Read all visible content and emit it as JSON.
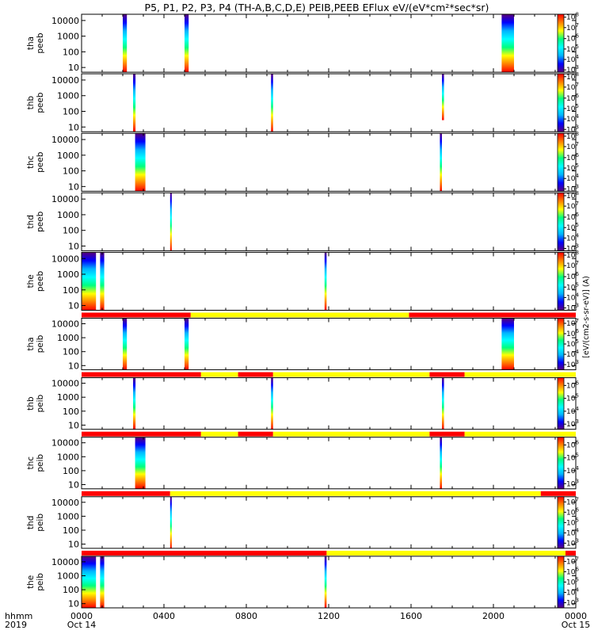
{
  "chart_data": {
    "type": "heatmap",
    "title": "P5, P1, P2, P3, P4 (TH-A,B,C,D,E) PEIB,PEEB EFlux eV/(eV*cm²*sec*sr)",
    "x_axis": {
      "range_hours": [
        0,
        24
      ],
      "tick_hours": [
        0,
        4,
        8,
        12,
        16,
        20,
        24
      ],
      "tick_labels": [
        "0000",
        "0400",
        "0800",
        "1200",
        "1600",
        "2000",
        "0000"
      ],
      "date_labels": [
        "Oct 14",
        "",
        "",
        "",
        "",
        "",
        "Oct 15"
      ],
      "row_labels": [
        "hhmm",
        "2019"
      ]
    },
    "y_ticks": [
      10,
      100,
      1000,
      10000
    ],
    "y_tick_labels": [
      "10",
      "100",
      "1000",
      "10000"
    ],
    "colorbar": {
      "unit_label": "[eV/(cm2-s-sr-eV)] (A)",
      "colors": [
        "#5a007a",
        "#0000ff",
        "#00b4ff",
        "#00ffff",
        "#00ff80",
        "#ffff00",
        "#ff8000",
        "#ff0000"
      ]
    },
    "mode_bar_colors": {
      "fast": "#ff0000",
      "slow": "#ffff00"
    },
    "panels": [
      {
        "name": "thapeeb",
        "ylabel": [
          "tha",
          "peeb"
        ],
        "cb_ticks": [
          {
            "frac": 0.04,
            "exp": "3"
          },
          {
            "frac": 0.22,
            "exp": "4"
          },
          {
            "frac": 0.4,
            "exp": "5"
          },
          {
            "frac": 0.58,
            "exp": "6"
          },
          {
            "frac": 0.77,
            "exp": "7"
          },
          {
            "frac": 0.95,
            "exp": "8"
          }
        ],
        "bursts": [
          {
            "start_hr": 2.0,
            "end_hr": 2.2,
            "ymin_frac": 0.0,
            "ymax_frac": 1.0
          },
          {
            "start_hr": 5.0,
            "end_hr": 5.2,
            "ymin_frac": 0.0,
            "ymax_frac": 1.0
          },
          {
            "start_hr": 20.4,
            "end_hr": 21.0,
            "ymin_frac": 0.0,
            "ymax_frac": 1.0
          }
        ],
        "mode_segments": []
      },
      {
        "name": "thbpeeb",
        "ylabel": [
          "thb",
          "peeb"
        ],
        "cb_ticks": [
          {
            "frac": 0.04,
            "exp": "3"
          },
          {
            "frac": 0.22,
            "exp": "4"
          },
          {
            "frac": 0.4,
            "exp": "5"
          },
          {
            "frac": 0.58,
            "exp": "6"
          },
          {
            "frac": 0.77,
            "exp": "7"
          },
          {
            "frac": 0.95,
            "exp": "8"
          }
        ],
        "bursts": [
          {
            "start_hr": 2.5,
            "end_hr": 2.62,
            "ymin_frac": 0.0,
            "ymax_frac": 1.0
          },
          {
            "start_hr": 9.2,
            "end_hr": 9.3,
            "ymin_frac": 0.0,
            "ymax_frac": 1.0
          },
          {
            "start_hr": 17.5,
            "end_hr": 17.6,
            "ymin_frac": 0.2,
            "ymax_frac": 1.0
          }
        ],
        "mode_segments": []
      },
      {
        "name": "thcpeeb",
        "ylabel": [
          "thc",
          "peeb"
        ],
        "cb_ticks": [
          {
            "frac": 0.04,
            "exp": "3"
          },
          {
            "frac": 0.22,
            "exp": "4"
          },
          {
            "frac": 0.4,
            "exp": "5"
          },
          {
            "frac": 0.58,
            "exp": "6"
          },
          {
            "frac": 0.77,
            "exp": "7"
          },
          {
            "frac": 0.95,
            "exp": "8"
          }
        ],
        "bursts": [
          {
            "start_hr": 2.6,
            "end_hr": 3.1,
            "ymin_frac": 0.0,
            "ymax_frac": 1.0
          },
          {
            "start_hr": 17.4,
            "end_hr": 17.5,
            "ymin_frac": 0.0,
            "ymax_frac": 1.0
          }
        ],
        "mode_segments": []
      },
      {
        "name": "thdpeeb",
        "ylabel": [
          "thd",
          "peeb"
        ],
        "cb_ticks": [
          {
            "frac": 0.04,
            "exp": "3"
          },
          {
            "frac": 0.22,
            "exp": "4"
          },
          {
            "frac": 0.4,
            "exp": "5"
          },
          {
            "frac": 0.58,
            "exp": "6"
          },
          {
            "frac": 0.77,
            "exp": "7"
          },
          {
            "frac": 0.95,
            "exp": "8"
          }
        ],
        "bursts": [
          {
            "start_hr": 4.3,
            "end_hr": 4.38,
            "ymin_frac": 0.0,
            "ymax_frac": 1.0
          }
        ],
        "mode_segments": []
      },
      {
        "name": "thepeeb",
        "ylabel": [
          "the",
          "peeb"
        ],
        "cb_ticks": [
          {
            "frac": 0.04,
            "exp": "3"
          },
          {
            "frac": 0.22,
            "exp": "4"
          },
          {
            "frac": 0.4,
            "exp": "5"
          },
          {
            "frac": 0.58,
            "exp": "6"
          },
          {
            "frac": 0.77,
            "exp": "7"
          },
          {
            "frac": 0.95,
            "exp": "8"
          }
        ],
        "bursts": [
          {
            "start_hr": 0.0,
            "end_hr": 0.7,
            "ymin_frac": 0.0,
            "ymax_frac": 1.0
          },
          {
            "start_hr": 0.9,
            "end_hr": 1.1,
            "ymin_frac": 0.0,
            "ymax_frac": 1.0
          },
          {
            "start_hr": 11.8,
            "end_hr": 11.9,
            "ymin_frac": 0.0,
            "ymax_frac": 1.0
          }
        ],
        "mode_segments": []
      },
      {
        "name": "thapeib",
        "ylabel": [
          "tha",
          "peib"
        ],
        "cb_ticks": [
          {
            "frac": 0.1,
            "exp": "3"
          },
          {
            "frac": 0.3,
            "exp": "4"
          },
          {
            "frac": 0.5,
            "exp": "5"
          },
          {
            "frac": 0.7,
            "exp": "6"
          },
          {
            "frac": 0.9,
            "exp": "7"
          }
        ],
        "bursts": [
          {
            "start_hr": 2.0,
            "end_hr": 2.2,
            "ymin_frac": 0.0,
            "ymax_frac": 1.0
          },
          {
            "start_hr": 5.0,
            "end_hr": 5.2,
            "ymin_frac": 0.0,
            "ymax_frac": 1.0
          },
          {
            "start_hr": 20.4,
            "end_hr": 21.0,
            "ymin_frac": 0.0,
            "ymax_frac": 1.0
          }
        ],
        "mode_segments": [
          {
            "start_hr": 0.0,
            "end_hr": 5.3,
            "mode": "fast"
          },
          {
            "start_hr": 5.3,
            "end_hr": 15.9,
            "mode": "slow"
          },
          {
            "start_hr": 15.9,
            "end_hr": 24.0,
            "mode": "fast"
          }
        ]
      },
      {
        "name": "thbpeib",
        "ylabel": [
          "thb",
          "peib"
        ],
        "cb_ticks": [
          {
            "frac": 0.1,
            "exp": "3"
          },
          {
            "frac": 0.35,
            "exp": "4"
          },
          {
            "frac": 0.6,
            "exp": "5"
          },
          {
            "frac": 0.85,
            "exp": "6"
          }
        ],
        "bursts": [
          {
            "start_hr": 2.5,
            "end_hr": 2.62,
            "ymin_frac": 0.0,
            "ymax_frac": 1.0
          },
          {
            "start_hr": 9.2,
            "end_hr": 9.3,
            "ymin_frac": 0.0,
            "ymax_frac": 1.0
          },
          {
            "start_hr": 17.5,
            "end_hr": 17.6,
            "ymin_frac": 0.0,
            "ymax_frac": 1.0
          }
        ],
        "mode_segments": [
          {
            "start_hr": 0.0,
            "end_hr": 5.8,
            "mode": "fast"
          },
          {
            "start_hr": 5.8,
            "end_hr": 7.6,
            "mode": "slow"
          },
          {
            "start_hr": 7.6,
            "end_hr": 9.3,
            "mode": "fast"
          },
          {
            "start_hr": 9.3,
            "end_hr": 16.9,
            "mode": "slow"
          },
          {
            "start_hr": 16.9,
            "end_hr": 18.6,
            "mode": "fast"
          },
          {
            "start_hr": 18.6,
            "end_hr": 24.0,
            "mode": "slow"
          }
        ]
      },
      {
        "name": "thcpeib",
        "ylabel": [
          "thc",
          "peib"
        ],
        "cb_ticks": [
          {
            "frac": 0.1,
            "exp": "3"
          },
          {
            "frac": 0.35,
            "exp": "4"
          },
          {
            "frac": 0.6,
            "exp": "5"
          },
          {
            "frac": 0.85,
            "exp": "6"
          }
        ],
        "bursts": [
          {
            "start_hr": 2.6,
            "end_hr": 3.1,
            "ymin_frac": 0.0,
            "ymax_frac": 1.0
          },
          {
            "start_hr": 17.4,
            "end_hr": 17.5,
            "ymin_frac": 0.0,
            "ymax_frac": 1.0
          }
        ],
        "mode_segments": [
          {
            "start_hr": 0.0,
            "end_hr": 5.8,
            "mode": "fast"
          },
          {
            "start_hr": 5.8,
            "end_hr": 7.6,
            "mode": "slow"
          },
          {
            "start_hr": 7.6,
            "end_hr": 9.3,
            "mode": "fast"
          },
          {
            "start_hr": 9.3,
            "end_hr": 16.9,
            "mode": "slow"
          },
          {
            "start_hr": 16.9,
            "end_hr": 18.6,
            "mode": "fast"
          },
          {
            "start_hr": 18.6,
            "end_hr": 24.0,
            "mode": "slow"
          }
        ]
      },
      {
        "name": "thdpeib",
        "ylabel": [
          "thd",
          "peib"
        ],
        "cb_ticks": [
          {
            "frac": 0.1,
            "exp": "3"
          },
          {
            "frac": 0.3,
            "exp": "4"
          },
          {
            "frac": 0.5,
            "exp": "5"
          },
          {
            "frac": 0.7,
            "exp": "6"
          },
          {
            "frac": 0.9,
            "exp": "7"
          }
        ],
        "bursts": [
          {
            "start_hr": 4.3,
            "end_hr": 4.38,
            "ymin_frac": 0.0,
            "ymax_frac": 1.0
          }
        ],
        "mode_segments": [
          {
            "start_hr": 0.0,
            "end_hr": 4.3,
            "mode": "fast"
          },
          {
            "start_hr": 4.3,
            "end_hr": 22.3,
            "mode": "slow"
          },
          {
            "start_hr": 22.3,
            "end_hr": 24.0,
            "mode": "fast"
          }
        ]
      },
      {
        "name": "thepeib",
        "ylabel": [
          "the",
          "peib"
        ],
        "cb_ticks": [
          {
            "frac": 0.1,
            "exp": "3"
          },
          {
            "frac": 0.3,
            "exp": "4"
          },
          {
            "frac": 0.5,
            "exp": "5"
          },
          {
            "frac": 0.7,
            "exp": "6"
          },
          {
            "frac": 0.9,
            "exp": "7"
          }
        ],
        "bursts": [
          {
            "start_hr": 0.0,
            "end_hr": 0.7,
            "ymin_frac": 0.0,
            "ymax_frac": 1.0
          },
          {
            "start_hr": 0.9,
            "end_hr": 1.1,
            "ymin_frac": 0.0,
            "ymax_frac": 1.0
          },
          {
            "start_hr": 11.8,
            "end_hr": 11.9,
            "ymin_frac": 0.0,
            "ymax_frac": 1.0
          }
        ],
        "mode_segments": [
          {
            "start_hr": 0.0,
            "end_hr": 11.9,
            "mode": "fast"
          },
          {
            "start_hr": 11.9,
            "end_hr": 23.5,
            "mode": "slow"
          },
          {
            "start_hr": 23.5,
            "end_hr": 24.0,
            "mode": "fast"
          }
        ]
      }
    ]
  }
}
